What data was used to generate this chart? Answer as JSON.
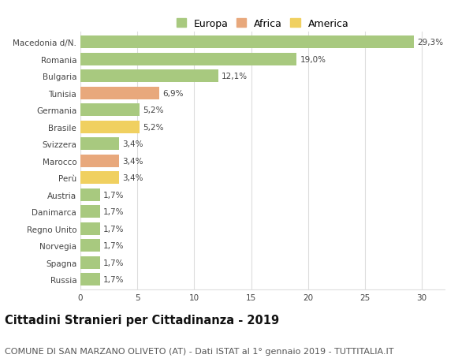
{
  "categories": [
    "Macedonia d/N.",
    "Romania",
    "Bulgaria",
    "Tunisia",
    "Germania",
    "Brasile",
    "Svizzera",
    "Marocco",
    "Perù",
    "Austria",
    "Danimarca",
    "Regno Unito",
    "Norvegia",
    "Spagna",
    "Russia"
  ],
  "values": [
    29.3,
    19.0,
    12.1,
    6.9,
    5.2,
    5.2,
    3.4,
    3.4,
    3.4,
    1.7,
    1.7,
    1.7,
    1.7,
    1.7,
    1.7
  ],
  "labels": [
    "29,3%",
    "19,0%",
    "12,1%",
    "6,9%",
    "5,2%",
    "5,2%",
    "3,4%",
    "3,4%",
    "3,4%",
    "1,7%",
    "1,7%",
    "1,7%",
    "1,7%",
    "1,7%",
    "1,7%"
  ],
  "continents": [
    "Europa",
    "Europa",
    "Europa",
    "Africa",
    "Europa",
    "America",
    "Europa",
    "Africa",
    "America",
    "Europa",
    "Europa",
    "Europa",
    "Europa",
    "Europa",
    "Europa"
  ],
  "colors": {
    "Europa": "#a8c97f",
    "Africa": "#e8a87c",
    "America": "#f0d060"
  },
  "xlim": [
    0,
    32
  ],
  "xticks": [
    0,
    5,
    10,
    15,
    20,
    25,
    30
  ],
  "title": "Cittadini Stranieri per Cittadinanza - 2019",
  "subtitle": "COMUNE DI SAN MARZANO OLIVETO (AT) - Dati ISTAT al 1° gennaio 2019 - TUTTITALIA.IT",
  "background_color": "#ffffff",
  "grid_color": "#dddddd",
  "bar_height": 0.75,
  "title_fontsize": 10.5,
  "subtitle_fontsize": 8,
  "label_fontsize": 7.5,
  "tick_fontsize": 7.5,
  "legend_fontsize": 9
}
